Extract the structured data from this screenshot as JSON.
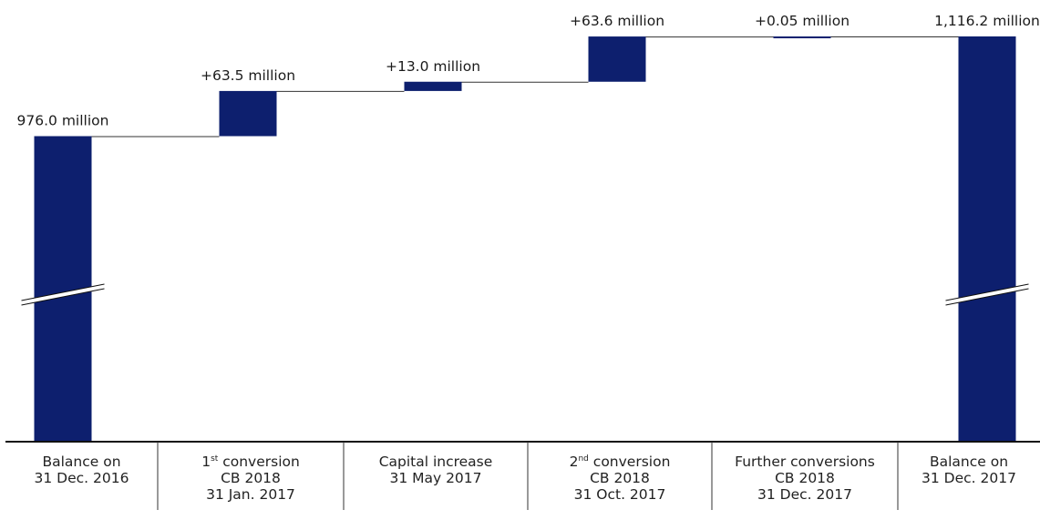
{
  "chart_data": {
    "type": "waterfall",
    "unit": "million",
    "color": "#0d1f6e",
    "axis_break": true,
    "steps": [
      {
        "kind": "total",
        "value": 976.0,
        "label": "976.0 million",
        "category_lines": [
          "Balance on",
          "31 Dec. 2016"
        ]
      },
      {
        "kind": "delta",
        "value": 63.5,
        "label": "+63.5 million",
        "category_lines": [
          {
            "num": "1",
            "sup": "st",
            "rest": " conversion"
          },
          "CB 2018",
          "31 Jan. 2017"
        ]
      },
      {
        "kind": "delta",
        "value": 13.0,
        "label": "+13.0 million",
        "category_lines": [
          "Capital increase",
          "31 May 2017"
        ]
      },
      {
        "kind": "delta",
        "value": 63.6,
        "label": "+63.6 million",
        "category_lines": [
          {
            "num": "2",
            "sup": "nd",
            "rest": " conversion"
          },
          "CB 2018",
          "31 Oct. 2017"
        ]
      },
      {
        "kind": "delta",
        "value": 0.05,
        "label": "+0.05 million",
        "category_lines": [
          "Further conversions",
          "CB 2018",
          "31 Dec. 2017"
        ]
      },
      {
        "kind": "total",
        "value": 1116.2,
        "label": "1,116.2 million",
        "category_lines": [
          "Balance on",
          "31 Dec. 2017"
        ]
      }
    ]
  }
}
